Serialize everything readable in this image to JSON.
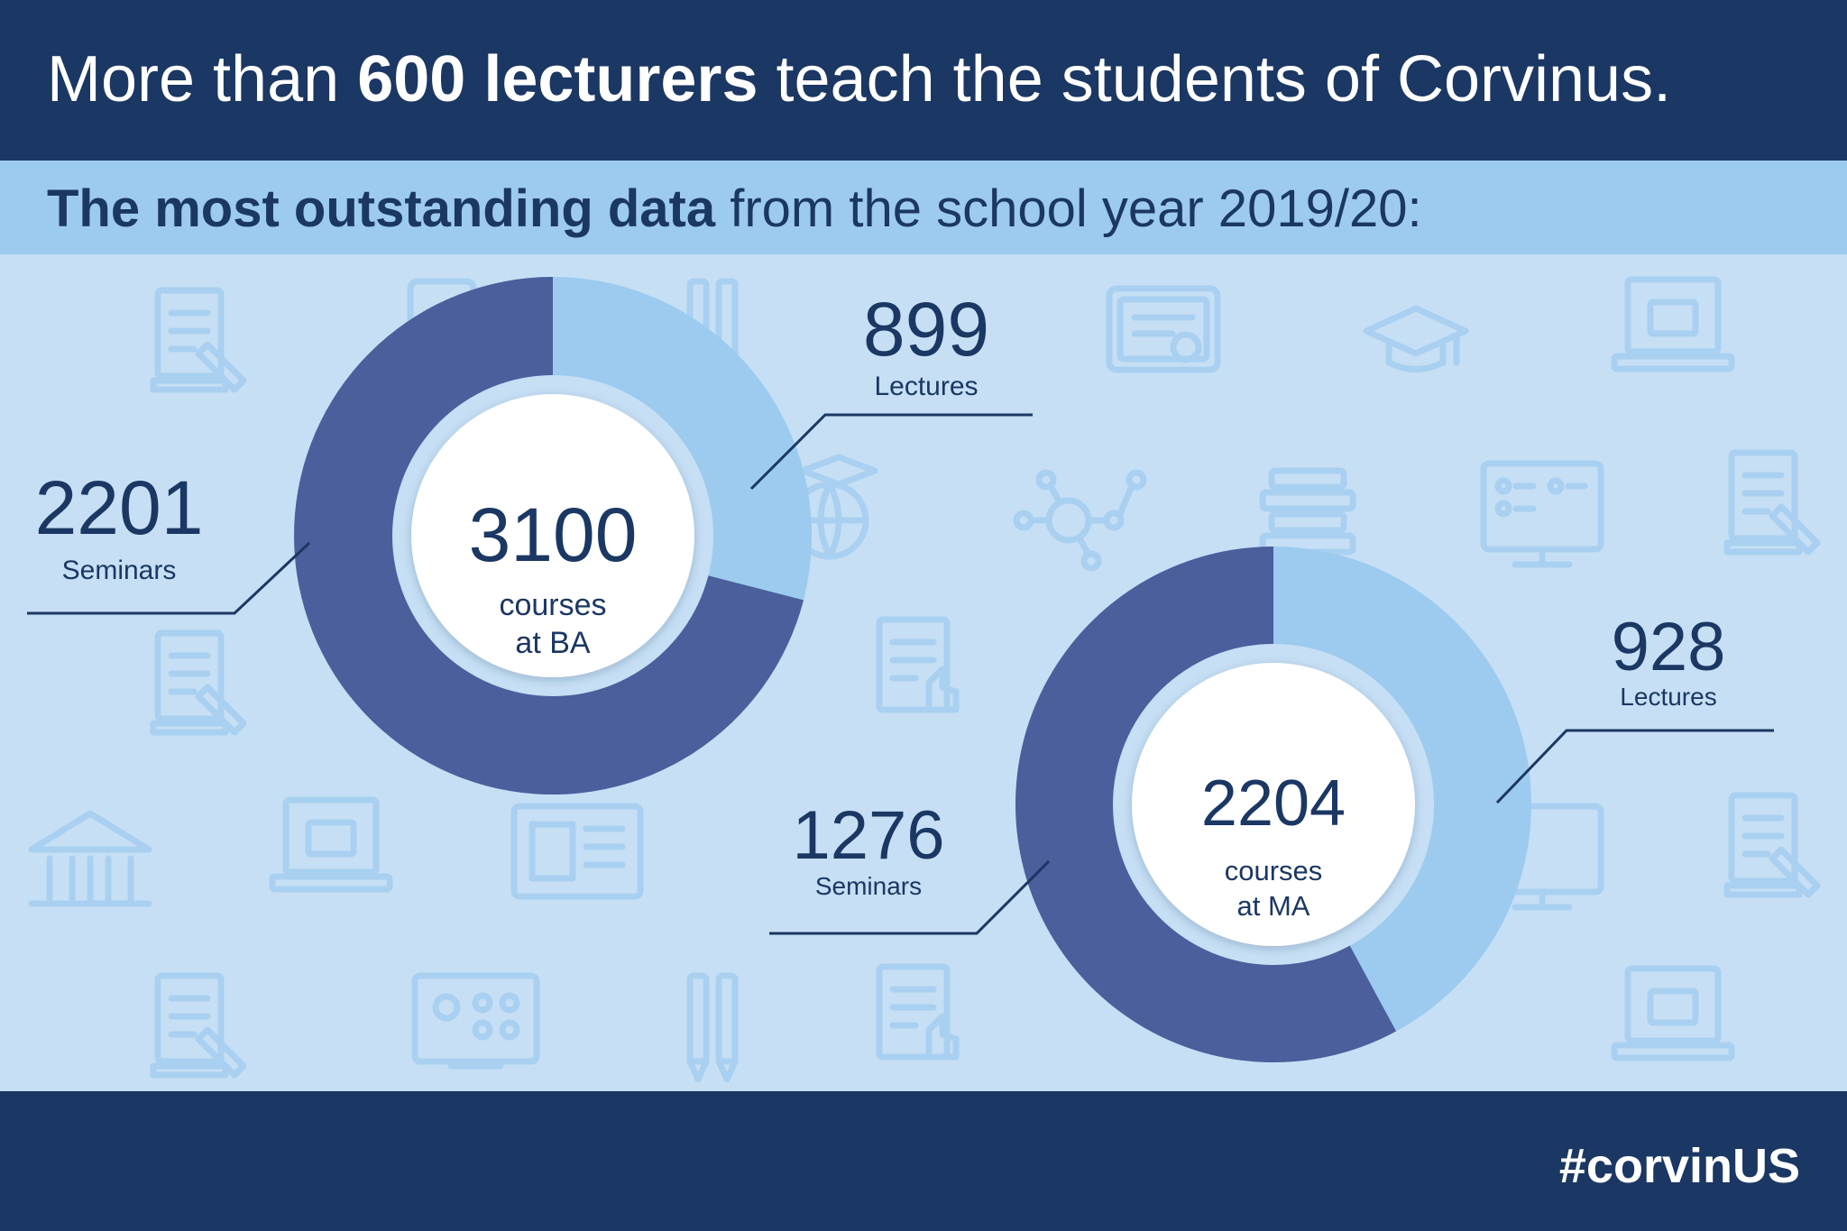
{
  "header": {
    "title_pre": "More than ",
    "title_bold": "600 lecturers",
    "title_post": " teach the students of Corvinus."
  },
  "subheader": {
    "title_bold": "The most outstanding data",
    "title_post": " from the school year 2019/20:"
  },
  "footer": {
    "hashtag": "#corvinUS"
  },
  "colors": {
    "dark_navy": "#1b3763",
    "seminars": "#4a5f9c",
    "lectures": "#9ccbef",
    "background": "#c6dff4",
    "icon": "#a9d0f1"
  },
  "background_icons": [
    "document-pencil-icon",
    "tablet-icon",
    "pencils-icon",
    "certificate-icon",
    "graduation-cap-icon",
    "laptop-icon",
    "globe-cap-icon",
    "molecule-icon",
    "books-icon",
    "monitor-checklist-icon",
    "document-hand-icon",
    "university-building-icon",
    "web-layout-icon",
    "classroom-screen-icon"
  ],
  "chart_data": [
    {
      "type": "pie",
      "center_value": "3100",
      "center_label_1": "courses",
      "center_label_2": "at BA",
      "total": 3100,
      "slices": [
        {
          "label": "Lectures",
          "value": 899
        },
        {
          "label": "Seminars",
          "value": 2201
        }
      ]
    },
    {
      "type": "pie",
      "center_value": "2204",
      "center_label_1": "courses",
      "center_label_2": "at MA",
      "total": 2204,
      "slices": [
        {
          "label": "Lectures",
          "value": 928
        },
        {
          "label": "Seminars",
          "value": 1276
        }
      ]
    }
  ]
}
